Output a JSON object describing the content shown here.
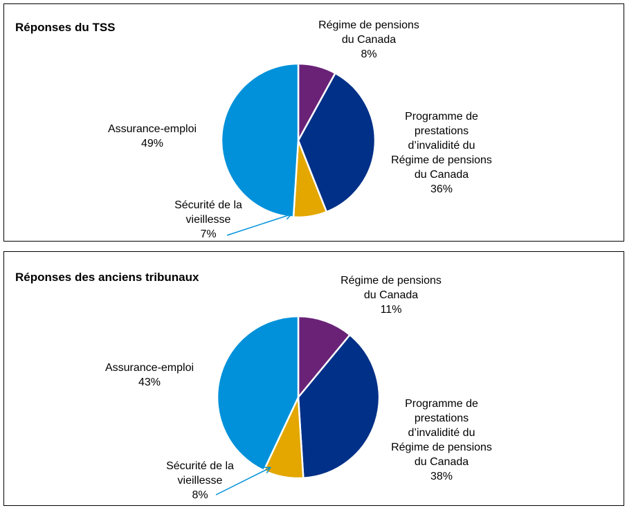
{
  "chart_data": [
    {
      "type": "pie",
      "title": "Réponses du TSS",
      "slices": [
        {
          "label": [
            "Régime de pensions",
            "du Canada"
          ],
          "value": 8,
          "value_label": "8%",
          "color": "#6a2277"
        },
        {
          "label": [
            "Programme de",
            "prestations",
            "d’invalidité du",
            "Régime de pensions",
            "du Canada"
          ],
          "value": 36,
          "value_label": "36%",
          "color": "#003087"
        },
        {
          "label": [
            "Sécurité de la",
            "vieillesse"
          ],
          "value": 7,
          "value_label": "7%",
          "color": "#e3a700"
        },
        {
          "label": [
            "Assurance-emploi"
          ],
          "value": 49,
          "value_label": "49%",
          "color": "#0091da"
        }
      ]
    },
    {
      "type": "pie",
      "title": "Réponses des anciens tribunaux",
      "slices": [
        {
          "label": [
            "Régime de pensions",
            "du Canada"
          ],
          "value": 11,
          "value_label": "11%",
          "color": "#6a2277"
        },
        {
          "label": [
            "Programme de",
            "prestations",
            "d’invalidité du",
            "Régime de pensions",
            "du Canada"
          ],
          "value": 38,
          "value_label": "38%",
          "color": "#003087"
        },
        {
          "label": [
            "Sécurité de la",
            "vieillesse"
          ],
          "value": 8,
          "value_label": "8%",
          "color": "#e3a700"
        },
        {
          "label": [
            "Assurance-emploi"
          ],
          "value": 43,
          "value_label": "43%",
          "color": "#0091da"
        }
      ]
    }
  ]
}
